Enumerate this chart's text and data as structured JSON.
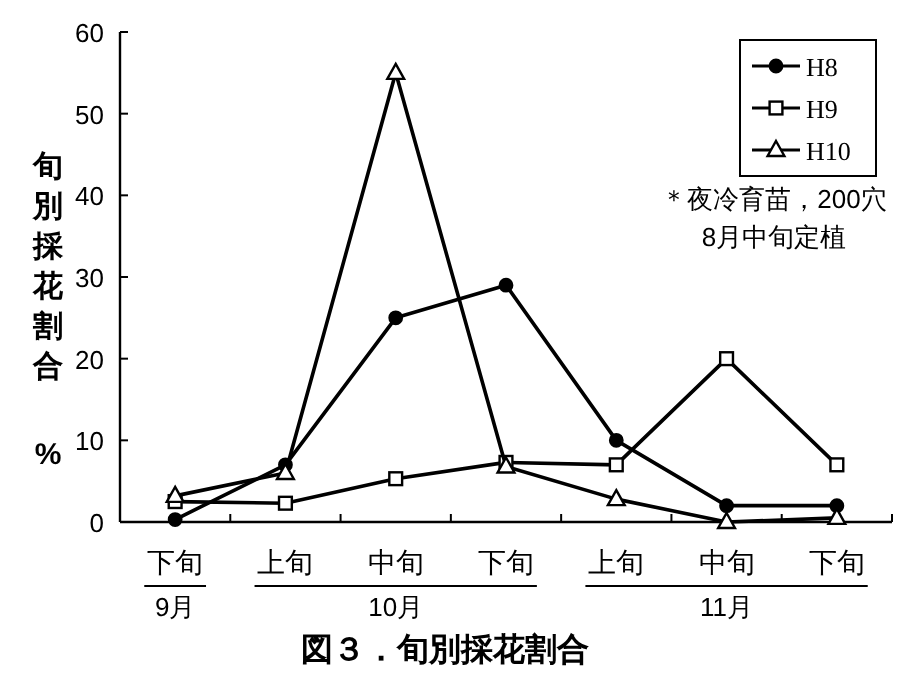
{
  "chart_data": {
    "type": "line",
    "title": "図３．旬別採花割合",
    "ylabel": "旬別採花割合%",
    "categories": [
      "下旬",
      "上旬",
      "中旬",
      "下旬",
      "上旬",
      "中旬",
      "下旬"
    ],
    "series": [
      {
        "name": "H8",
        "color": "#000000",
        "marker": "circle",
        "values": [
          0.3,
          7,
          25,
          29,
          10,
          2,
          2
        ]
      },
      {
        "name": "H9",
        "color": "#000000",
        "marker": "square",
        "values": [
          2.5,
          2.3,
          5.3,
          7.3,
          7,
          20,
          7
        ]
      },
      {
        "name": "H10",
        "color": "#000000",
        "marker": "triangle",
        "values": [
          3.2,
          6,
          55,
          6.8,
          2.8,
          0,
          0.5
        ]
      }
    ],
    "ylim": [
      0,
      60
    ],
    "yticks": [
      0,
      10,
      20,
      30,
      40,
      50,
      60
    ],
    "grid": false,
    "legend": "top right",
    "line_style": "solid",
    "annotations": [
      "9月",
      "10月",
      "11月",
      "＊夜冷育苗，200穴\n8月中旬定植"
    ]
  }
}
